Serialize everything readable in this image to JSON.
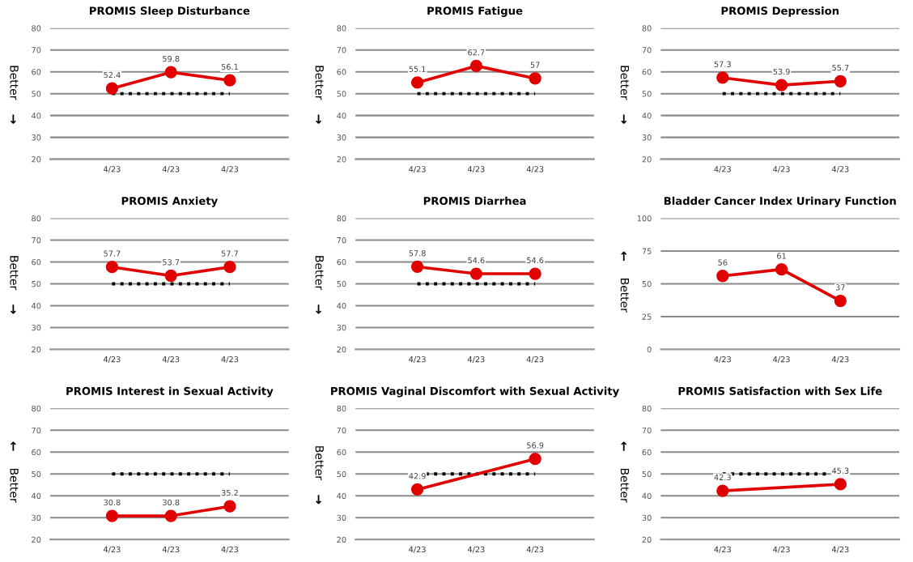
{
  "chart_data": [
    {
      "type": "line",
      "title": "PROMIS Sleep Disturbance",
      "ylabel": "Better ↓",
      "categories": [
        "4/23",
        "4/23",
        "4/23"
      ],
      "series": [
        {
          "color": "#e00000",
          "values": [
            52.4,
            59.8,
            56.1
          ]
        }
      ],
      "ylim": [
        20,
        80
      ],
      "yticks": [
        20,
        30,
        40,
        50,
        60,
        70,
        80
      ],
      "grid": "y",
      "marker": "circle",
      "data_labels": true,
      "ref_lines": [
        {
          "axis": "y",
          "value": 50,
          "color": "#000000",
          "line_style": "dotted"
        }
      ]
    },
    {
      "type": "line",
      "title": "PROMIS Fatigue",
      "ylabel": "Better ↓",
      "categories": [
        "4/23",
        "4/23",
        "4/23"
      ],
      "series": [
        {
          "color": "#e00000",
          "values": [
            55.1,
            62.7,
            57
          ]
        }
      ],
      "ylim": [
        20,
        80
      ],
      "yticks": [
        20,
        30,
        40,
        50,
        60,
        70,
        80
      ],
      "grid": "y",
      "marker": "circle",
      "data_labels": true,
      "ref_lines": [
        {
          "axis": "y",
          "value": 50,
          "color": "#000000",
          "line_style": "dotted"
        }
      ]
    },
    {
      "type": "line",
      "title": "PROMIS Depression",
      "ylabel": "Better ↓",
      "categories": [
        "4/23",
        "4/23",
        "4/23"
      ],
      "series": [
        {
          "color": "#e00000",
          "values": [
            57.3,
            53.9,
            55.7
          ]
        }
      ],
      "ylim": [
        20,
        80
      ],
      "yticks": [
        20,
        30,
        40,
        50,
        60,
        70,
        80
      ],
      "grid": "y",
      "marker": "circle",
      "data_labels": true,
      "ref_lines": [
        {
          "axis": "y",
          "value": 50,
          "color": "#000000",
          "line_style": "dotted"
        }
      ]
    },
    {
      "type": "line",
      "title": "PROMIS Anxiety",
      "ylabel": "Better ↓",
      "categories": [
        "4/23",
        "4/23",
        "4/23"
      ],
      "series": [
        {
          "color": "#e00000",
          "values": [
            57.7,
            53.7,
            57.7
          ]
        }
      ],
      "ylim": [
        20,
        80
      ],
      "yticks": [
        20,
        30,
        40,
        50,
        60,
        70,
        80
      ],
      "grid": "y",
      "marker": "circle",
      "data_labels": true,
      "ref_lines": [
        {
          "axis": "y",
          "value": 50,
          "color": "#000000",
          "line_style": "dotted"
        }
      ]
    },
    {
      "type": "line",
      "title": "PROMIS Diarrhea",
      "ylabel": "Better ↓",
      "categories": [
        "4/23",
        "4/23",
        "4/23"
      ],
      "series": [
        {
          "color": "#e00000",
          "values": [
            57.8,
            54.6,
            54.6
          ]
        }
      ],
      "ylim": [
        20,
        80
      ],
      "yticks": [
        20,
        30,
        40,
        50,
        60,
        70,
        80
      ],
      "grid": "y",
      "marker": "circle",
      "data_labels": true,
      "ref_lines": [
        {
          "axis": "y",
          "value": 50,
          "color": "#000000",
          "line_style": "dotted"
        }
      ]
    },
    {
      "type": "line",
      "title": "Bladder Cancer Index Urinary Function",
      "ylabel": "↑ Better",
      "categories": [
        "4/23",
        "4/23",
        "4/23"
      ],
      "series": [
        {
          "color": "#e00000",
          "values": [
            56,
            61,
            37
          ]
        }
      ],
      "ylim": [
        0,
        100
      ],
      "yticks": [
        0,
        25,
        50,
        75,
        100
      ],
      "grid": "y",
      "marker": "circle",
      "data_labels": true
    },
    {
      "type": "line",
      "title": "PROMIS Interest in Sexual Activity",
      "ylabel": "↑ Better",
      "categories": [
        "4/23",
        "4/23",
        "4/23"
      ],
      "series": [
        {
          "color": "#e00000",
          "values": [
            30.8,
            30.8,
            35.2
          ]
        }
      ],
      "ylim": [
        20,
        80
      ],
      "yticks": [
        20,
        30,
        40,
        50,
        60,
        70,
        80
      ],
      "grid": "y",
      "marker": "circle",
      "data_labels": true,
      "ref_lines": [
        {
          "axis": "y",
          "value": 50,
          "color": "#000000",
          "line_style": "dotted"
        }
      ]
    },
    {
      "type": "line",
      "title": "PROMIS Vaginal Discomfort with Sexual Activity",
      "ylabel": "Better ↓",
      "categories": [
        "4/23",
        "4/23",
        "4/23"
      ],
      "series": [
        {
          "color": "#e00000",
          "values": [
            42.9,
            null,
            56.9
          ]
        }
      ],
      "ylim": [
        20,
        80
      ],
      "yticks": [
        20,
        30,
        40,
        50,
        60,
        70,
        80
      ],
      "grid": "y",
      "marker": "circle",
      "data_labels": true,
      "ref_lines": [
        {
          "axis": "y",
          "value": 50,
          "color": "#000000",
          "line_style": "dotted"
        }
      ]
    },
    {
      "type": "line",
      "title": "PROMIS Satisfaction with Sex Life",
      "ylabel": "↑ Better",
      "categories": [
        "4/23",
        "4/23",
        "4/23"
      ],
      "series": [
        {
          "color": "#e00000",
          "values": [
            42.3,
            null,
            45.3
          ]
        }
      ],
      "ylim": [
        20,
        80
      ],
      "yticks": [
        20,
        30,
        40,
        50,
        60,
        70,
        80
      ],
      "grid": "y",
      "marker": "circle",
      "data_labels": true,
      "ref_lines": [
        {
          "axis": "y",
          "value": 50,
          "color": "#000000",
          "line_style": "dotted"
        }
      ]
    }
  ]
}
